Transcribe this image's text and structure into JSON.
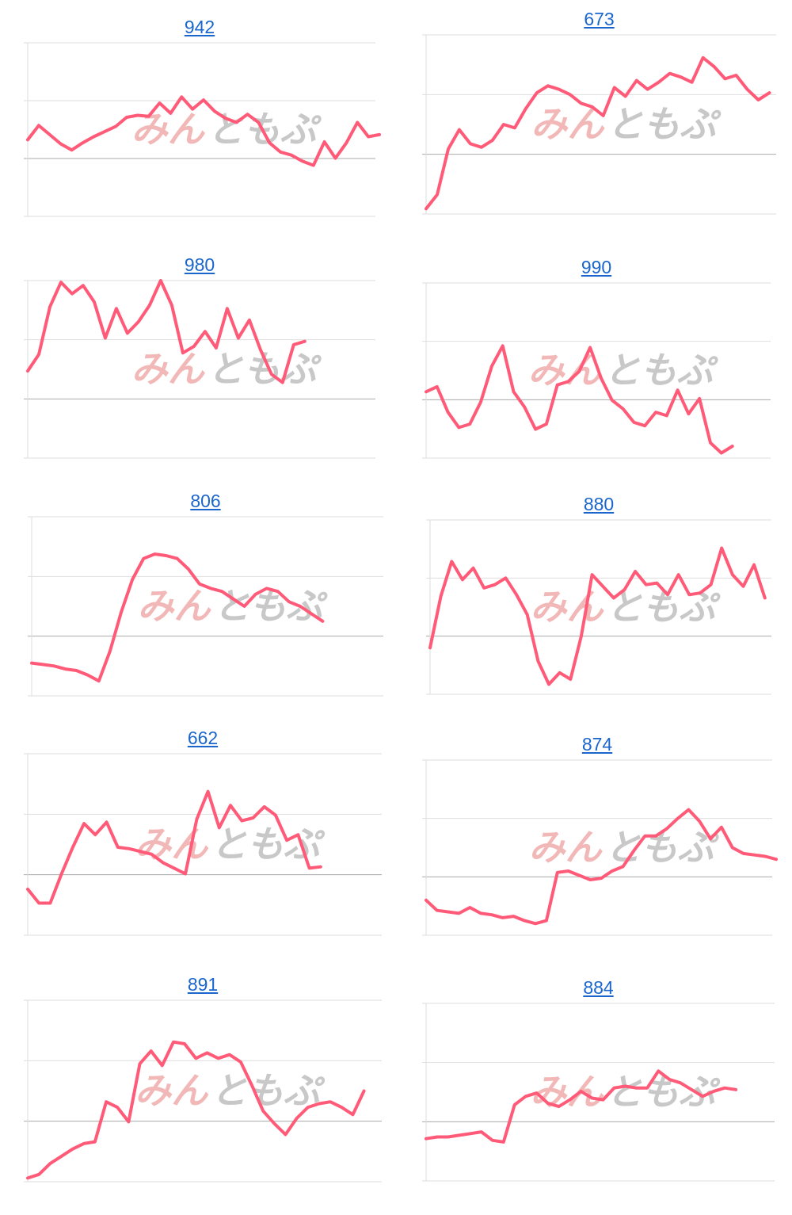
{
  "chart_data": [
    {
      "type": "line",
      "title": "942",
      "values": [
        0.35,
        0.49,
        0.4,
        0.31,
        0.25,
        0.32,
        0.38,
        0.43,
        0.48,
        0.57,
        0.59,
        0.58,
        0.71,
        0.61,
        0.77,
        0.65,
        0.74,
        0.63,
        0.56,
        0.52,
        0.6,
        0.52,
        0.32,
        0.23,
        0.2,
        0.14,
        0.1,
        0.33,
        0.17,
        0.32,
        0.52,
        0.38,
        0.4
      ],
      "ylim": [
        -0.4,
        1.3
      ]
    },
    {
      "type": "line",
      "title": "673",
      "values": [
        0.03,
        0.11,
        0.37,
        0.48,
        0.4,
        0.38,
        0.42,
        0.51,
        0.49,
        0.6,
        0.69,
        0.73,
        0.71,
        0.68,
        0.63,
        0.61,
        0.56,
        0.72,
        0.67,
        0.76,
        0.71,
        0.75,
        0.8,
        0.78,
        0.75,
        0.89,
        0.84,
        0.77,
        0.79,
        0.71,
        0.65,
        0.69
      ],
      "ylim": [
        0,
        1.02
      ]
    },
    {
      "type": "line",
      "title": "980",
      "values": [
        0.48,
        0.58,
        0.87,
        1.02,
        0.95,
        1.0,
        0.9,
        0.68,
        0.86,
        0.71,
        0.78,
        0.88,
        1.03,
        0.88,
        0.59,
        0.63,
        0.72,
        0.62,
        0.86,
        0.68,
        0.79,
        0.61,
        0.46,
        0.41,
        0.64,
        0.66
      ],
      "ylim": [
        -0.05,
        1.03
      ]
    },
    {
      "type": "line",
      "title": "990",
      "values": [
        0.39,
        0.42,
        0.27,
        0.18,
        0.2,
        0.33,
        0.54,
        0.66,
        0.39,
        0.3,
        0.17,
        0.2,
        0.43,
        0.45,
        0.51,
        0.65,
        0.47,
        0.34,
        0.29,
        0.21,
        0.19,
        0.27,
        0.25,
        0.4,
        0.26,
        0.35,
        0.09,
        0.03,
        0.07
      ],
      "ylim": [
        0,
        1.03
      ]
    },
    {
      "type": "line",
      "title": "806",
      "values": [
        0.22,
        0.21,
        0.2,
        0.18,
        0.17,
        0.14,
        0.1,
        0.3,
        0.56,
        0.78,
        0.92,
        0.95,
        0.94,
        0.92,
        0.85,
        0.75,
        0.72,
        0.7,
        0.65,
        0.6,
        0.68,
        0.72,
        0.7,
        0.63,
        0.6,
        0.55,
        0.5
      ],
      "ylim": [
        0,
        1.2
      ]
    },
    {
      "type": "line",
      "title": "880",
      "values": [
        0.28,
        0.59,
        0.8,
        0.69,
        0.76,
        0.64,
        0.66,
        0.7,
        0.6,
        0.48,
        0.2,
        0.06,
        0.13,
        0.09,
        0.35,
        0.72,
        0.65,
        0.58,
        0.63,
        0.74,
        0.66,
        0.67,
        0.6,
        0.72,
        0.6,
        0.61,
        0.66,
        0.88,
        0.72,
        0.65,
        0.78,
        0.58
      ],
      "ylim": [
        0,
        1.05
      ]
    },
    {
      "type": "line",
      "title": "662",
      "values": [
        0.23,
        0.13,
        0.13,
        0.34,
        0.53,
        0.7,
        0.62,
        0.71,
        0.53,
        0.52,
        0.5,
        0.48,
        0.42,
        0.38,
        0.34,
        0.73,
        0.93,
        0.67,
        0.83,
        0.72,
        0.74,
        0.82,
        0.76,
        0.58,
        0.62,
        0.38,
        0.39
      ],
      "ylim": [
        -0.1,
        1.2
      ]
    },
    {
      "type": "line",
      "title": "874",
      "values": [
        0.24,
        0.17,
        0.16,
        0.15,
        0.19,
        0.15,
        0.14,
        0.12,
        0.13,
        0.1,
        0.08,
        0.1,
        0.43,
        0.44,
        0.41,
        0.38,
        0.39,
        0.44,
        0.47,
        0.58,
        0.68,
        0.68,
        0.73,
        0.8,
        0.86,
        0.78,
        0.66,
        0.74,
        0.6,
        0.56,
        0.55,
        0.54,
        0.52
      ],
      "ylim": [
        0,
        1.2
      ]
    },
    {
      "type": "line",
      "title": "891",
      "values": [
        0.02,
        0.04,
        0.1,
        0.14,
        0.18,
        0.21,
        0.22,
        0.44,
        0.41,
        0.33,
        0.65,
        0.72,
        0.64,
        0.77,
        0.76,
        0.68,
        0.71,
        0.68,
        0.7,
        0.66,
        0.53,
        0.39,
        0.32,
        0.26,
        0.35,
        0.41,
        0.43,
        0.44,
        0.41,
        0.37,
        0.5
      ],
      "ylim": [
        0,
        1.0
      ]
    },
    {
      "type": "line",
      "title": "884",
      "values": [
        0.25,
        0.26,
        0.26,
        0.27,
        0.28,
        0.29,
        0.24,
        0.23,
        0.45,
        0.5,
        0.52,
        0.46,
        0.44,
        0.48,
        0.53,
        0.49,
        0.48,
        0.55,
        0.56,
        0.55,
        0.55,
        0.65,
        0.6,
        0.58,
        0.54,
        0.5,
        0.53,
        0.55,
        0.54
      ],
      "ylim": [
        0,
        1.05
      ]
    }
  ],
  "watermark": {
    "part1": "みん",
    "part2": "ともぷ",
    "color1": "#f2b8b8",
    "color2": "#c8c8c8"
  },
  "line_color": "#ff5b78",
  "grid_color": "#dedede",
  "baseline_color": "#aaaaaa"
}
